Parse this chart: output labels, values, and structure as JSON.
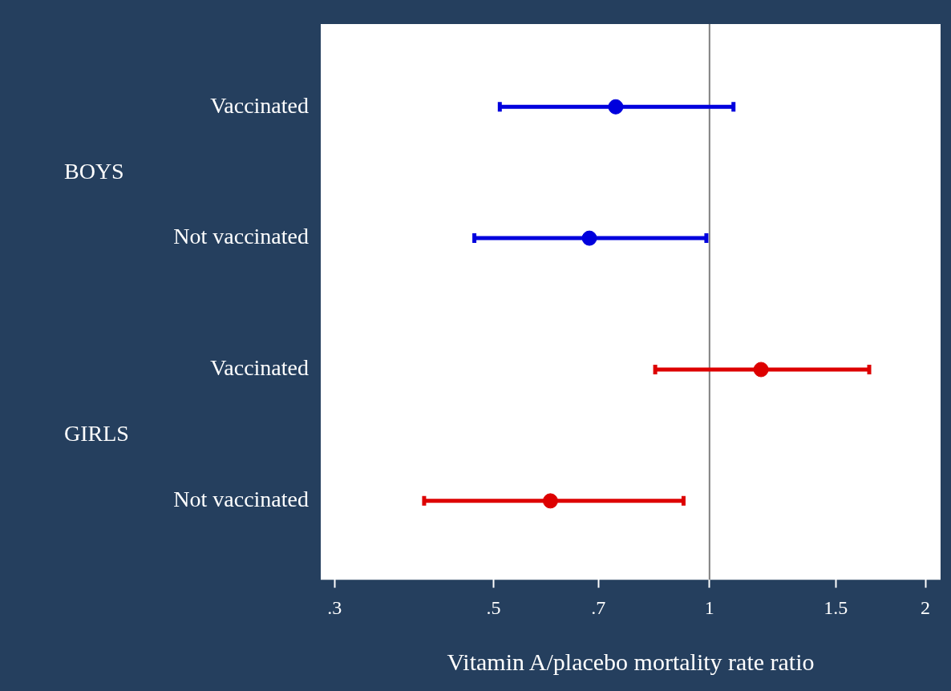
{
  "chart_data": {
    "type": "scatter",
    "orientation": "horizontal",
    "xlabel": "Vitamin A/placebo mortality rate ratio",
    "categories": [
      "Vaccinated",
      null,
      "Not vaccinated",
      null,
      "Vaccinated",
      null,
      "Not vaccinated"
    ],
    "annotations": [
      "BOYS",
      "GIRLS"
    ],
    "series": [
      {
        "color": "#0000dd",
        "values": [
          0.74,
          null,
          0.68,
          null,
          null,
          null,
          null
        ],
        "errors": [
          [
            0.51,
            1.08
          ],
          null,
          [
            0.47,
            0.99
          ],
          null,
          null,
          null,
          null
        ]
      },
      {
        "color": "#dd0000",
        "values": [
          null,
          null,
          null,
          null,
          1.18,
          null,
          0.6
        ],
        "errors": [
          null,
          null,
          null,
          null,
          [
            0.84,
            1.67
          ],
          null,
          [
            0.4,
            0.92
          ]
        ]
      }
    ],
    "log": "x",
    "xlim": [
      0.287,
      2.1
    ],
    "xticks": [
      {
        "value": 0.3,
        "label": ".3"
      },
      {
        "value": 0.5,
        "label": ".5"
      },
      {
        "value": 0.7,
        "label": ".7"
      },
      1,
      1.5,
      2
    ],
    "ref_lines": [
      {
        "axis": "x",
        "value": 1,
        "color": "#808080"
      }
    ],
    "marker": "circle",
    "grid": false
  }
}
